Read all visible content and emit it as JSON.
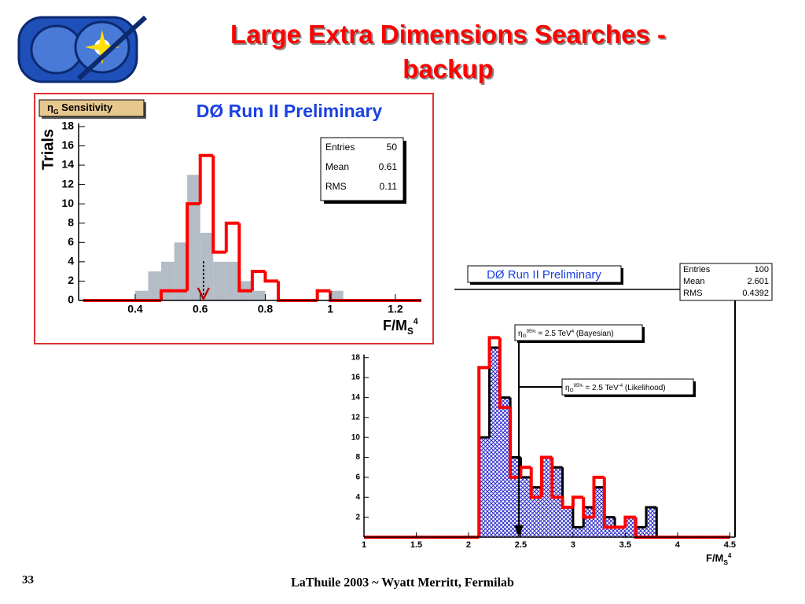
{
  "title": "Large Extra Dimensions Searches - backup",
  "page_number": "33",
  "footer": "LaThuile 2003 ~ Wyatt Merritt, Fermilab",
  "chart_data": [
    {
      "type": "histogram",
      "title": "DØ Run II Preliminary",
      "label_box": {
        "symbol": "η",
        "sub": "G",
        "text": " Sensitivity"
      },
      "y_label": "Trials",
      "x_label": {
        "main": "F/M",
        "sub": "S",
        "sup": "4"
      },
      "stats": [
        {
          "label": "Entries",
          "value": 50
        },
        {
          "label": "Mean",
          "value": 0.61
        },
        {
          "label": "RMS",
          "value": 0.11
        }
      ],
      "bins": [
        0.24,
        0.28,
        0.32,
        0.36,
        0.4,
        0.44,
        0.48,
        0.52,
        0.56,
        0.6,
        0.64,
        0.68,
        0.72,
        0.76,
        0.8,
        0.84,
        0.88,
        0.92,
        0.96,
        1,
        1.04,
        1.08,
        1.12,
        1.16,
        1.2,
        1.24,
        1.28
      ],
      "series": [
        {
          "color": "#b4bcc6",
          "style": "fill",
          "values": [
            0,
            0,
            0,
            0,
            1,
            3,
            4,
            6,
            13,
            7,
            4,
            4,
            2,
            1,
            0,
            0,
            0,
            0,
            0,
            1,
            0,
            0,
            0,
            0,
            0,
            0
          ]
        },
        {
          "color": "#ff0000",
          "style": "step",
          "values": [
            0,
            0,
            0,
            0,
            0,
            0,
            1,
            1,
            10,
            15,
            5,
            8,
            1,
            3,
            2,
            0,
            0,
            0,
            1,
            0,
            0,
            0,
            0,
            0,
            0,
            0
          ]
        }
      ],
      "xlim": [
        0.226,
        1.28
      ],
      "ylim": [
        0,
        18.4
      ],
      "xticks": [
        0.4,
        0.6,
        0.8,
        1,
        1.2
      ],
      "yticks": [
        0,
        2,
        4,
        6,
        8,
        10,
        12,
        14,
        16,
        18
      ]
    },
    {
      "type": "histogram",
      "title": "DØ Run II Preliminary",
      "x_label": {
        "main": "F/M",
        "sub": "S",
        "sup": "4"
      },
      "stats": [
        {
          "label": "Entries",
          "value": 100
        },
        {
          "label": "Mean",
          "value": 2.601
        },
        {
          "label": "RMS",
          "value": 0.4392
        }
      ],
      "annotations": [
        {
          "symbol": "η",
          "sub": "G",
          "sup": "95%",
          "text": " = 2.5 TeV",
          "power": "4",
          "method": " (Bayesian)"
        },
        {
          "symbol": "η",
          "sub": "G",
          "sup": "95%",
          "text": " = 2.5 TeV",
          "power": "-4",
          "method": " (Likelihood)"
        }
      ],
      "bins": [
        1,
        1.1,
        1.2,
        1.3,
        1.4,
        1.5,
        1.6,
        1.7,
        1.8,
        1.9,
        2,
        2.1,
        2.2,
        2.3,
        2.4,
        2.5,
        2.6,
        2.7,
        2.8,
        2.9,
        3,
        3.1,
        3.2,
        3.3,
        3.4,
        3.5,
        3.6,
        3.7,
        3.8,
        3.9,
        4,
        4.1,
        4.2,
        4.3,
        4.4,
        4.5
      ],
      "series": [
        {
          "color": "#2828c8",
          "style": "hatch",
          "values": [
            0,
            0,
            0,
            0,
            0,
            0,
            0,
            0,
            0,
            0,
            0,
            10,
            19,
            14,
            8,
            6,
            5,
            8,
            7,
            3,
            1,
            3,
            5,
            2,
            1,
            2,
            1,
            3,
            0,
            0,
            0,
            0,
            0,
            0,
            0
          ]
        },
        {
          "color": "#ff0000",
          "style": "step",
          "values": [
            0,
            0,
            0,
            0,
            0,
            0,
            0,
            0,
            0,
            0,
            0,
            17,
            20,
            13,
            6,
            7,
            4,
            8,
            4,
            3,
            4,
            2,
            6,
            1,
            1,
            2,
            0,
            0,
            0,
            0,
            0,
            0,
            0,
            0,
            0
          ]
        }
      ],
      "xlim": [
        1,
        4.55
      ],
      "ylim": [
        0,
        20.5
      ],
      "xticks": [
        1,
        1.5,
        2,
        2.5,
        3,
        3.5,
        4,
        4.5
      ],
      "yticks": [
        2,
        4,
        6,
        8,
        10,
        12,
        14,
        16,
        18
      ]
    }
  ]
}
